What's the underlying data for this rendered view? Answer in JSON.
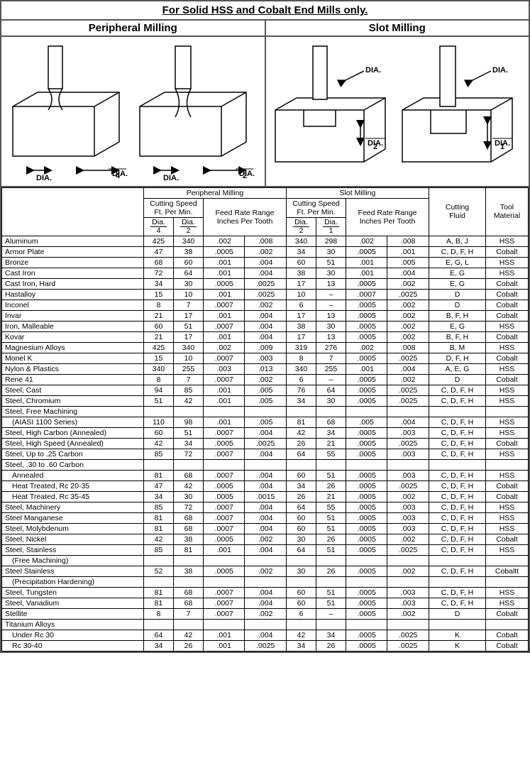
{
  "title": "For Solid HSS and Cobalt End Mills only.",
  "sections": {
    "left": "Peripheral Milling",
    "right": "Slot Milling"
  },
  "diagram_labels": {
    "dia": "DIA.",
    "d4": "4",
    "d2": "2",
    "d1": "1"
  },
  "headers": {
    "pm": "Peripheral Milling",
    "sm": "Slot Milling",
    "cs": "Cutting Speed",
    "fpm": "Ft. Per Min.",
    "frr": "Feed Rate Range",
    "ipt": "Inches Per Tooth",
    "cf": "Cutting",
    "cf2": "Fluid",
    "tm": "Tool",
    "tm2": "Material",
    "dia": "Dia.",
    "f4": "4",
    "f2": "2",
    "f1": "1"
  },
  "rows": [
    {
      "m": "Aluminum",
      "d4": "425",
      "d2": "340",
      "p1": ".002",
      "p2": ".008",
      "s2": "340",
      "s1": "298",
      "q1": ".002",
      "q2": ".008",
      "cf": "A, B, J",
      "tm": "HSS"
    },
    {
      "m": "Armor Plate",
      "d4": "47",
      "d2": "38",
      "p1": ".0005",
      "p2": ".002",
      "s2": "34",
      "s1": "30",
      "q1": ".0005",
      "q2": ".001",
      "cf": "C, D, F, H",
      "tm": "Cobalt"
    },
    {
      "m": "Bronze",
      "d4": "68",
      "d2": "60",
      "p1": ".001",
      "p2": ".004",
      "s2": "60",
      "s1": "51",
      "q1": ".001",
      "q2": ".005",
      "cf": "E, G, L",
      "tm": "HSS"
    },
    {
      "m": "Cast Iron",
      "d4": "72",
      "d2": "64",
      "p1": ".001",
      "p2": ".004",
      "s2": "38",
      "s1": "30",
      "q1": ".001",
      "q2": ".004",
      "cf": "E, G",
      "tm": "HSS"
    },
    {
      "m": "Cast Iron, Hard",
      "d4": "34",
      "d2": "30",
      "p1": ".0005",
      "p2": ".0025",
      "s2": "17",
      "s1": "13",
      "q1": ".0005",
      "q2": ".002",
      "cf": "E, G",
      "tm": "Cobalt"
    },
    {
      "m": "Hastalloy",
      "d4": "15",
      "d2": "10",
      "p1": ".001",
      "p2": ".0025",
      "s2": "10",
      "s1": "–",
      "q1": ".0007",
      "q2": ".0025",
      "cf": "D",
      "tm": "Cobalt"
    },
    {
      "m": "Inconel",
      "d4": "8",
      "d2": "7",
      "p1": ".0007",
      "p2": ".002",
      "s2": "6",
      "s1": "–",
      "q1": ".0005",
      "q2": ".002",
      "cf": "D",
      "tm": "Cobalt"
    },
    {
      "m": "Invar",
      "d4": "21",
      "d2": "17",
      "p1": ".001",
      "p2": ".004",
      "s2": "17",
      "s1": "13",
      "q1": ".0005",
      "q2": ".002",
      "cf": "B, F, H",
      "tm": "Cobalt"
    },
    {
      "m": "Iron, Malleable",
      "d4": "60",
      "d2": "51",
      "p1": ".0007",
      "p2": ".004",
      "s2": "38",
      "s1": "30",
      "q1": ".0005",
      "q2": ".002",
      "cf": "E, G",
      "tm": "HSS"
    },
    {
      "m": "Kovar",
      "d4": "21",
      "d2": "17",
      "p1": ".001",
      "p2": ".004",
      "s2": "17",
      "s1": "13",
      "q1": ".0005",
      "q2": ".002",
      "cf": "B, F, H",
      "tm": "Cobalt"
    },
    {
      "m": "Magnesium Alloys",
      "d4": "425",
      "d2": "340",
      "p1": ".002",
      "p2": ".009",
      "s2": "319",
      "s1": "276",
      "q1": ".002",
      "q2": ".008",
      "cf": "B, M",
      "tm": "HSS"
    },
    {
      "m": "Monel K",
      "d4": "15",
      "d2": "10",
      "p1": ".0007",
      "p2": ".003",
      "s2": "8",
      "s1": "7",
      "q1": ".0005",
      "q2": ".0025",
      "cf": "D, F, H",
      "tm": "Cobalt"
    },
    {
      "m": "Nylon & Plastics",
      "d4": "340",
      "d2": "255",
      "p1": ".003",
      "p2": ".013",
      "s2": "340",
      "s1": "255",
      "q1": ".001",
      "q2": ".004",
      "cf": "A, E, G",
      "tm": "HSS"
    },
    {
      "m": "Rene 41",
      "d4": "8",
      "d2": "7",
      "p1": ".0007",
      "p2": ".002",
      "s2": "6",
      "s1": "–",
      "q1": ".0005",
      "q2": ".002",
      "cf": "D",
      "tm": "Cobalt"
    },
    {
      "m": "Steel, Cast",
      "d4": "94",
      "d2": "85",
      "p1": ".001",
      "p2": ".005",
      "s2": "76",
      "s1": "64",
      "q1": ".0005",
      "q2": ".0025",
      "cf": "C, D, F, H",
      "tm": "HSS"
    },
    {
      "m": "Steel, Chromium",
      "d4": "51",
      "d2": "42",
      "p1": ".001",
      "p2": ".005",
      "s2": "34",
      "s1": "30",
      "q1": ".0005",
      "q2": ".0025",
      "cf": "C, D, F, H",
      "tm": "HSS"
    },
    {
      "m": "Steel, Free Machining",
      "blank": true
    },
    {
      "m": "(AIASI 1100 Series)",
      "indent": true,
      "d4": "110",
      "d2": "98",
      "p1": ".001",
      "p2": ".005",
      "s2": "81",
      "s1": "68",
      "q1": ".005",
      "q2": ".004",
      "cf": "C, D, F, H",
      "tm": "HSS"
    },
    {
      "m": "Steel, High Carbon (Annealed)",
      "d4": "60",
      "d2": "51",
      "p1": ".0007",
      "p2": ".004",
      "s2": "42",
      "s1": "34",
      "q1": ".0005",
      "q2": ".003",
      "cf": "C, D, F, H",
      "tm": "HSS"
    },
    {
      "m": "Steel, High Speed (Annealed)",
      "d4": "42",
      "d2": "34",
      "p1": ".0005",
      "p2": ".0025",
      "s2": "26",
      "s1": "21",
      "q1": ".0005",
      "q2": ".0025",
      "cf": "C, D, F, H",
      "tm": "Cobalt"
    },
    {
      "m": "Steel, Up to .25 Carbon",
      "d4": "85",
      "d2": "72",
      "p1": ".0007",
      "p2": ".004",
      "s2": "64",
      "s1": "55",
      "q1": ".0005",
      "q2": ".003",
      "cf": "C, D, F, H",
      "tm": "HSS"
    },
    {
      "m": "Steel, .30 to .60 Carbon",
      "blank": true
    },
    {
      "m": "Annealed",
      "indent": true,
      "d4": "81",
      "d2": "68",
      "p1": ".0007",
      "p2": ".004",
      "s2": "60",
      "s1": "51",
      "q1": ".0005",
      "q2": ".003",
      "cf": "C, D, F, H",
      "tm": "HSS"
    },
    {
      "m": "Heat Treated, Rc 20-35",
      "indent": true,
      "d4": "47",
      "d2": "42",
      "p1": ".0005",
      "p2": ".004",
      "s2": "34",
      "s1": "26",
      "q1": ".0005",
      "q2": ".0025",
      "cf": "C, D, F, H",
      "tm": "Cobalt"
    },
    {
      "m": "Heat Treated, Rc 35-45",
      "indent": true,
      "d4": "34",
      "d2": "30",
      "p1": ".0005",
      "p2": ".0015",
      "s2": "26",
      "s1": "21",
      "q1": ".0005",
      "q2": ".002",
      "cf": "C, D, F, H",
      "tm": "Cobalt"
    },
    {
      "m": "Steel, Machinery",
      "d4": "85",
      "d2": "72",
      "p1": ".0007",
      "p2": ".004",
      "s2": "64",
      "s1": "55",
      "q1": ".0005",
      "q2": ".003",
      "cf": "C, D, F, H",
      "tm": "HSS"
    },
    {
      "m": "Steel Manganese",
      "d4": "81",
      "d2": "68",
      "p1": ".0007",
      "p2": ".004",
      "s2": "60",
      "s1": "51",
      "q1": ".0005",
      "q2": ".003",
      "cf": "C, D, F, H",
      "tm": "HSS"
    },
    {
      "m": "Steel, Molybdenum",
      "d4": "81",
      "d2": "68",
      "p1": ".0007",
      "p2": ".004",
      "s2": "60",
      "s1": "51",
      "q1": ".0005",
      "q2": ".003",
      "cf": "C, D, F, H",
      "tm": "HSS"
    },
    {
      "m": "Steel, Nickel",
      "d4": "42",
      "d2": "38",
      "p1": ".0005",
      "p2": ".002",
      "s2": "30",
      "s1": "26",
      "q1": ".0005",
      "q2": ".002",
      "cf": "C, D, F, H",
      "tm": "Cobalt"
    },
    {
      "m": "Steel, Stainless",
      "d4": "85",
      "d2": "81",
      "p1": ".001",
      "p2": ".004",
      "s2": "64",
      "s1": "51",
      "q1": ".0005",
      "q2": ".0025",
      "cf": "C, D, F, H",
      "tm": "HSS"
    },
    {
      "m": "(Free Machining)",
      "indent": true,
      "blank": true
    },
    {
      "m": "Steel Stainless",
      "d4": "52",
      "d2": "38",
      "p1": ".0005",
      "p2": ".002",
      "s2": "30",
      "s1": "26",
      "q1": ".0005",
      "q2": ".002",
      "cf": "C, D, F, H",
      "tm": "Cobaltt"
    },
    {
      "m": "(Precipitation Hardening)",
      "indent": true,
      "blank": true
    },
    {
      "m": "Steel, Tungsten",
      "d4": "81",
      "d2": "68",
      "p1": ".0007",
      "p2": ".004",
      "s2": "60",
      "s1": "51",
      "q1": ".0005",
      "q2": ".003",
      "cf": "C, D, F, H",
      "tm": "HSS"
    },
    {
      "m": "Steel, Vanadium",
      "d4": "81",
      "d2": "68",
      "p1": ".0007",
      "p2": ".004",
      "s2": "60",
      "s1": "51",
      "q1": ".0005",
      "q2": ".003",
      "cf": "C, D, F, H",
      "tm": "HSS"
    },
    {
      "m": "Stellite",
      "d4": "8",
      "d2": "7",
      "p1": ".0007",
      "p2": ".002",
      "s2": "6",
      "s1": "–",
      "q1": ".0005",
      "q2": ".002",
      "cf": "D",
      "tm": "Cobalt"
    },
    {
      "m": "Titanium Alloys",
      "blank": true
    },
    {
      "m": "Under Rc 30",
      "indent": true,
      "d4": "64",
      "d2": "42",
      "p1": ".001",
      "p2": ".004",
      "s2": "42",
      "s1": "34",
      "q1": ".0005",
      "q2": ".0025",
      "cf": "K",
      "tm": "Cobalt"
    },
    {
      "m": "Rc 30-40",
      "indent": true,
      "d4": "34",
      "d2": "26",
      "p1": ".001",
      "p2": ".0025",
      "s2": "34",
      "s1": "26",
      "q1": ".0005",
      "q2": ".0025",
      "cf": "K",
      "tm": "Cobalt"
    }
  ]
}
